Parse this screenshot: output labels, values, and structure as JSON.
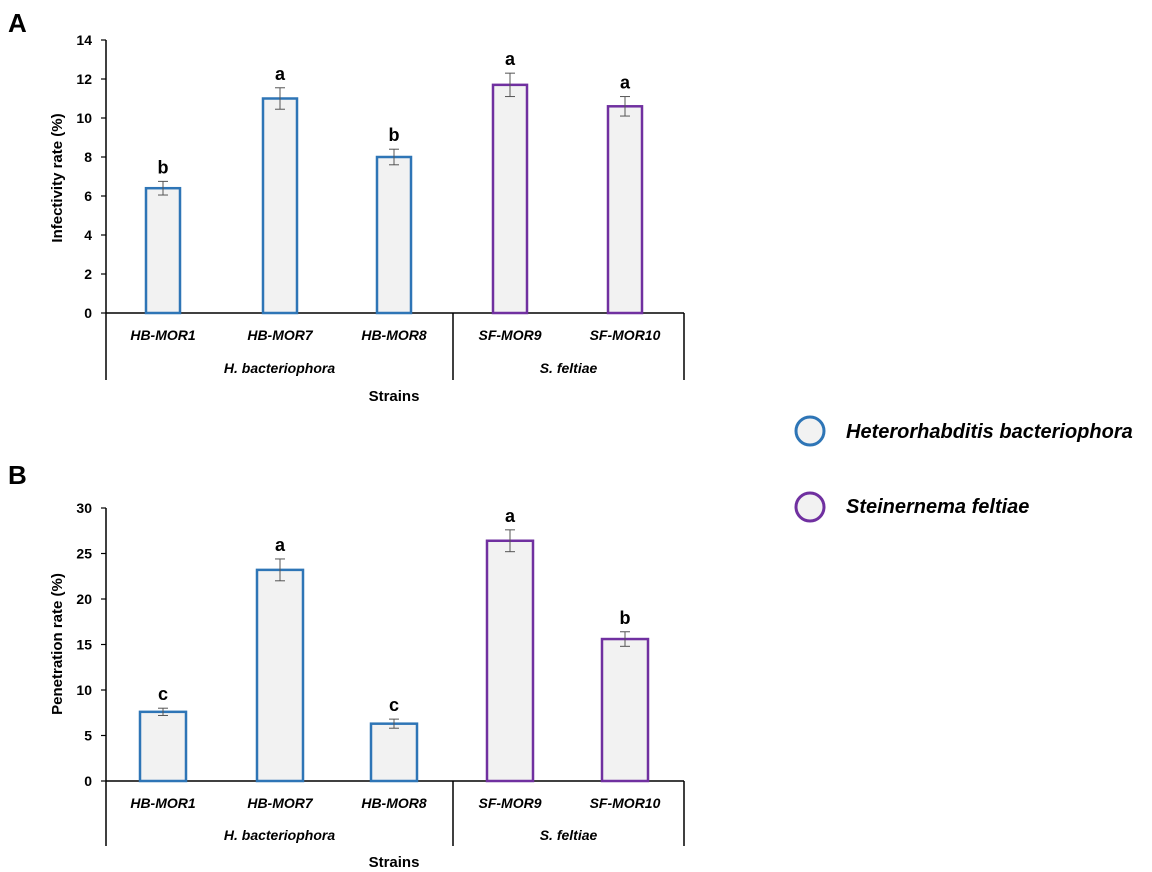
{
  "colors": {
    "hb": "#2e75b6",
    "sf": "#7030a0",
    "bar_fill": "#f2f2f2",
    "axis": "#000000",
    "error": "#555555"
  },
  "legend": {
    "items": [
      {
        "label": "Heterorhabditis bacteriophora",
        "color": "#2e75b6"
      },
      {
        "label": "Steinernema feltiae",
        "color": "#7030a0"
      }
    ]
  },
  "chart_data": [
    {
      "panel": "A",
      "type": "bar",
      "ylabel": "Infectivity rate (%)",
      "xlabel": "Strains",
      "ylim": [
        0,
        14
      ],
      "yticks": [
        0,
        2,
        4,
        6,
        8,
        10,
        12,
        14
      ],
      "categories": [
        "HB-MOR1",
        "HB-MOR7",
        "HB-MOR8",
        "SF-MOR9",
        "SF-MOR10"
      ],
      "values": [
        6.4,
        11.0,
        8.0,
        11.7,
        10.6
      ],
      "errors": [
        0.35,
        0.55,
        0.4,
        0.6,
        0.5
      ],
      "significance": [
        "b",
        "a",
        "b",
        "a",
        "a"
      ],
      "species_of_category": [
        0,
        0,
        0,
        1,
        1
      ],
      "groups": [
        "H. bacteriophora",
        "S. feltiae"
      ],
      "grid": false
    },
    {
      "panel": "B",
      "type": "bar",
      "ylabel": "Penetration rate (%)",
      "xlabel": "Strains",
      "ylim": [
        0,
        30
      ],
      "yticks": [
        0,
        5,
        10,
        15,
        20,
        25,
        30
      ],
      "categories": [
        "HB-MOR1",
        "HB-MOR7",
        "HB-MOR8",
        "SF-MOR9",
        "SF-MOR10"
      ],
      "values": [
        7.6,
        23.2,
        6.3,
        26.4,
        15.6
      ],
      "errors": [
        0.4,
        1.2,
        0.5,
        1.2,
        0.8
      ],
      "significance": [
        "c",
        "a",
        "c",
        "a",
        "b"
      ],
      "species_of_category": [
        0,
        0,
        0,
        1,
        1
      ],
      "groups": [
        "H. bacteriophora",
        "S. feltiae"
      ],
      "grid": false
    }
  ]
}
